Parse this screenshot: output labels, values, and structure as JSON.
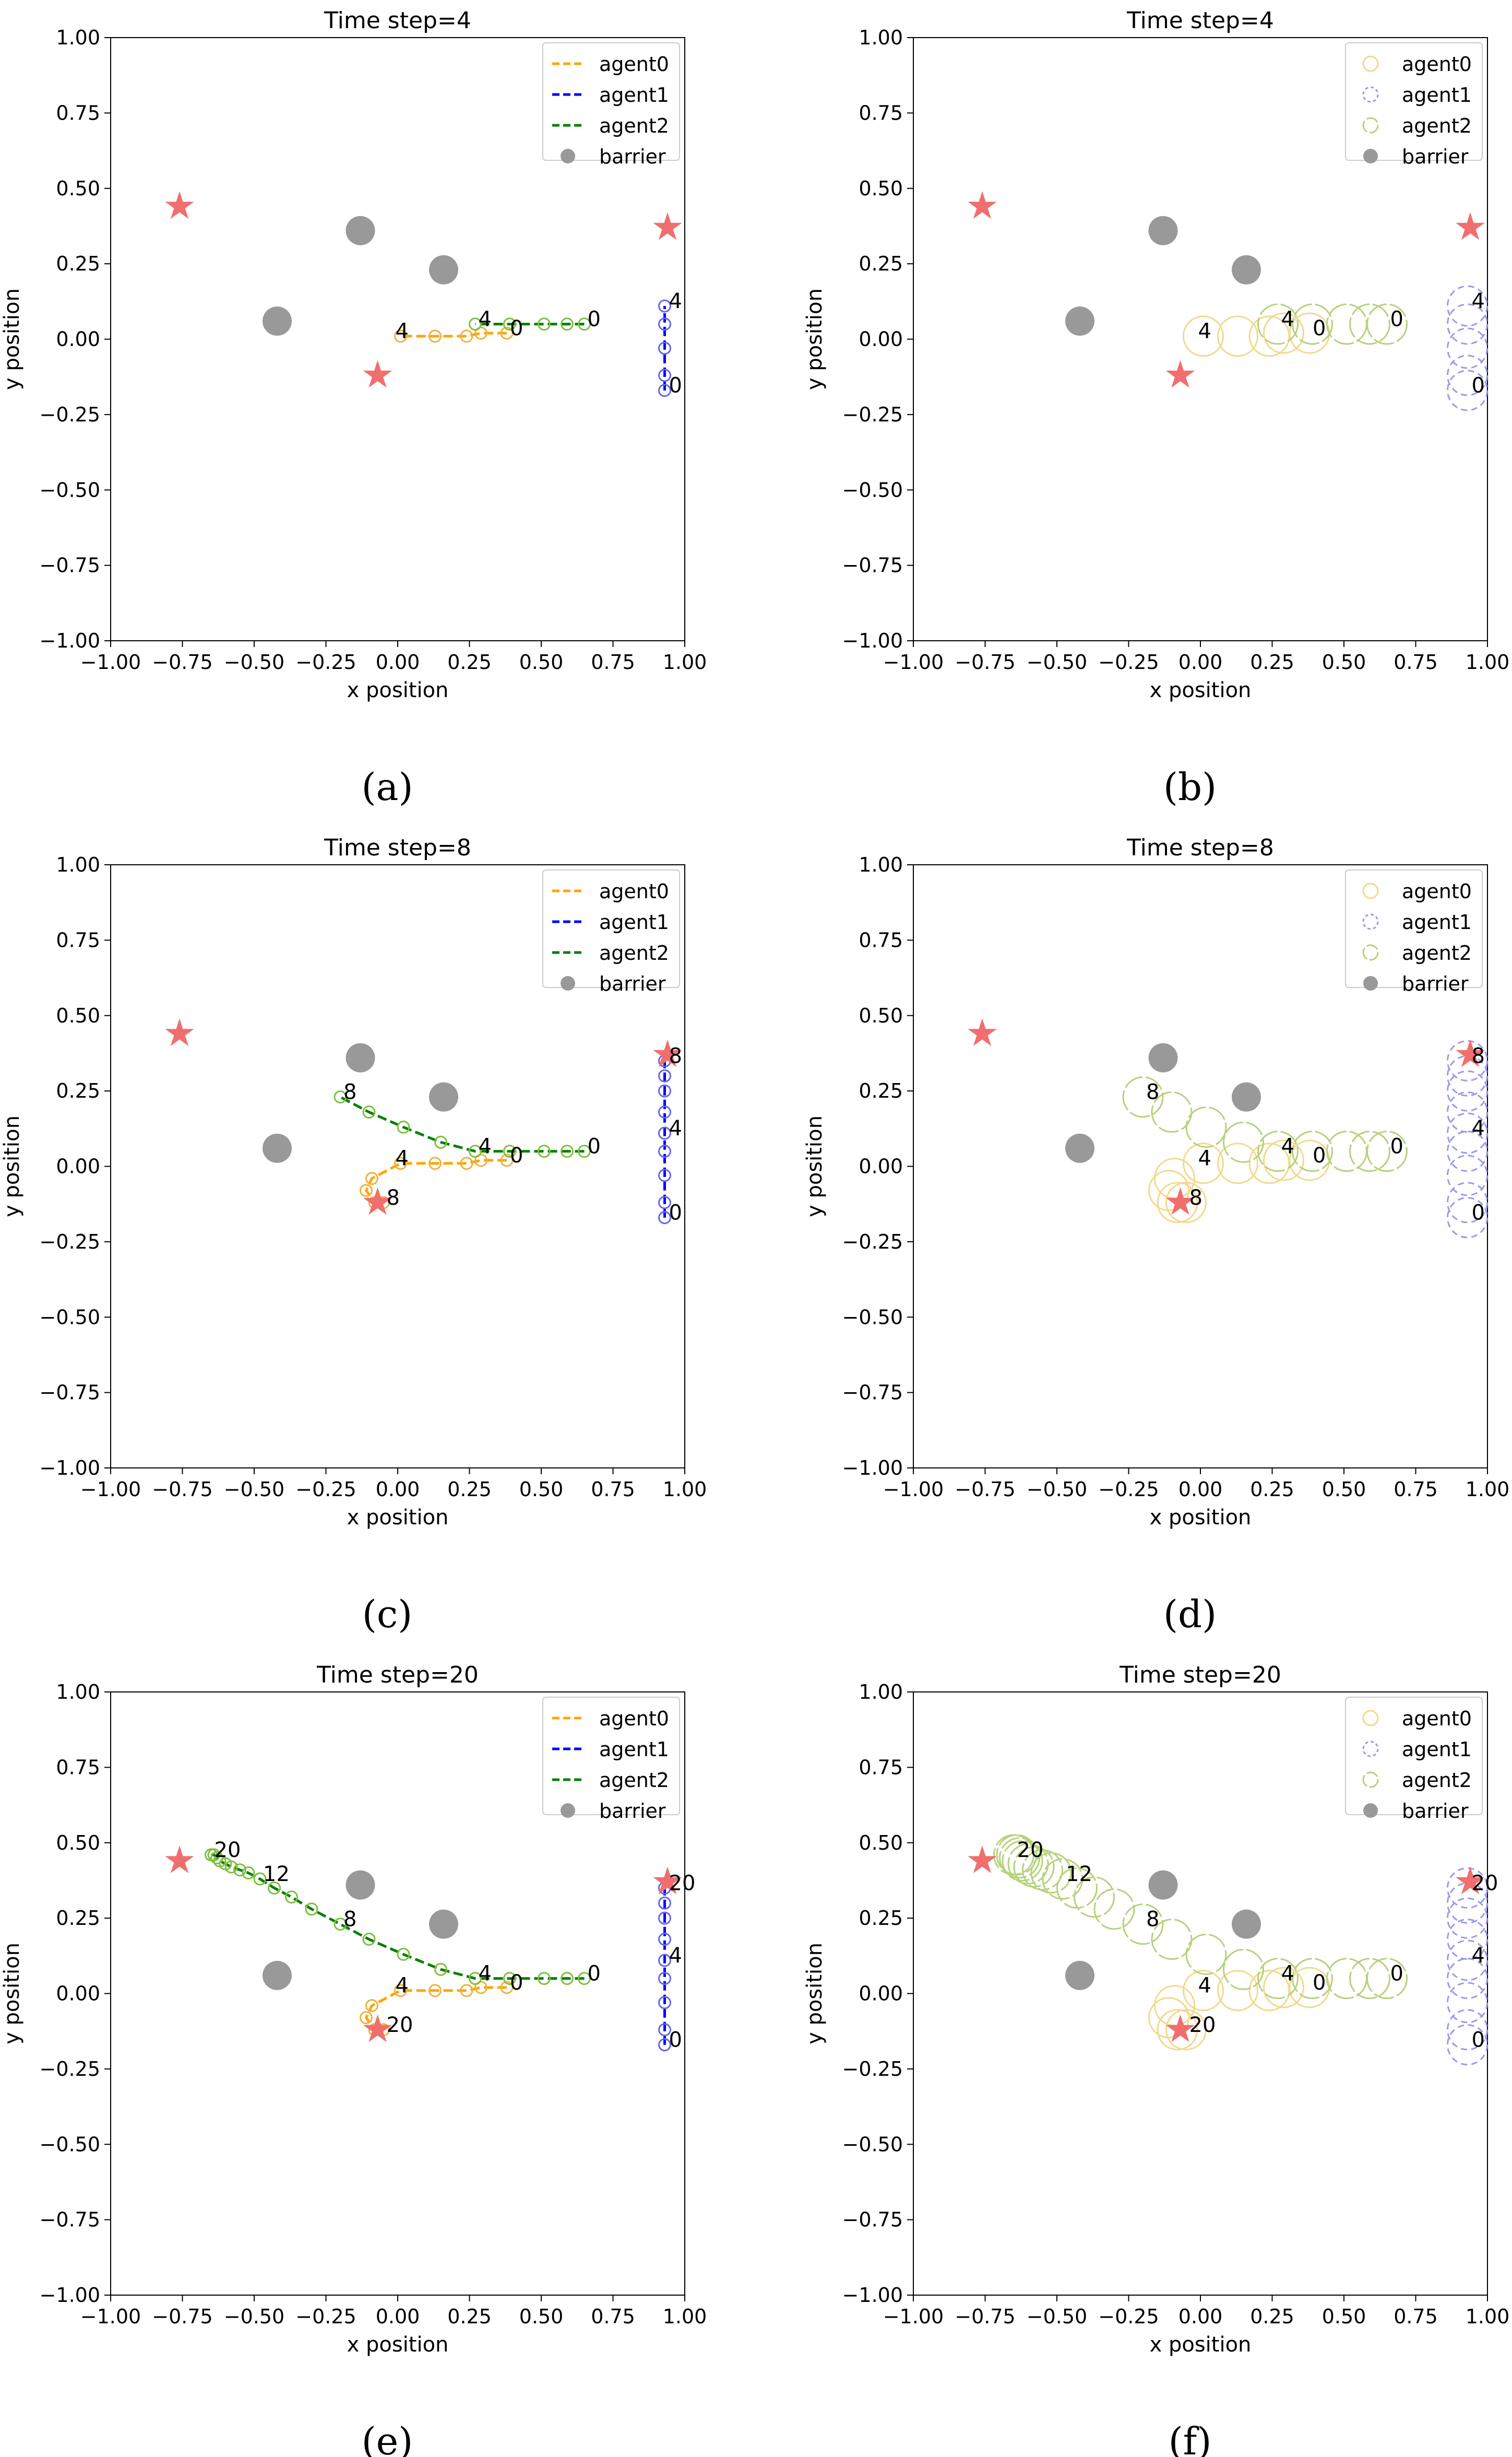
{
  "colors": {
    "agent0": "#FFA500",
    "agent1": "#0000FF",
    "agent2": "#008000",
    "agent0_circle": "#F2D98C",
    "agent1_circle": "#9999EE",
    "agent2_circle": "#B5D27A",
    "barrier": "#999999",
    "goal": "#F06E6E"
  },
  "chart_data": [
    {
      "panel": "(a)",
      "type": "line",
      "style": "trajectory",
      "title": "Time step=4",
      "xlabel": "x position",
      "ylabel": "y position",
      "xlim": [
        -1.0,
        1.0
      ],
      "ylim": [
        -1.0,
        1.0
      ],
      "xticks": [
        "−1.00",
        "−0.75",
        "−0.50",
        "−0.25",
        "0.00",
        "0.25",
        "0.50",
        "0.75",
        "1.00"
      ],
      "yticks": [
        "−1.00",
        "−0.75",
        "−0.50",
        "−0.25",
        "0.00",
        "0.25",
        "0.50",
        "0.75",
        "1.00"
      ],
      "legend": [
        "agent0",
        "agent1",
        "agent2",
        "barrier"
      ],
      "legend_loc": "upper right",
      "barriers": [
        [
          -0.13,
          0.36
        ],
        [
          0.16,
          0.23
        ],
        [
          -0.42,
          0.06
        ]
      ],
      "goals": [
        [
          -0.76,
          0.44
        ],
        [
          0.94,
          0.37
        ],
        [
          -0.07,
          -0.12
        ]
      ],
      "series": [
        {
          "name": "agent0",
          "x": [
            0.38,
            0.29,
            0.24,
            0.13,
            0.01
          ],
          "y": [
            0.02,
            0.02,
            0.01,
            0.01,
            0.01
          ],
          "labels": [
            {
              "idx": 0,
              "text": "0"
            },
            {
              "idx": 4,
              "text": "4"
            }
          ]
        },
        {
          "name": "agent1",
          "x": [
            0.93,
            0.93,
            0.93,
            0.93,
            0.93
          ],
          "y": [
            -0.17,
            -0.12,
            -0.03,
            0.05,
            0.11
          ],
          "labels": [
            {
              "idx": 0,
              "text": "0"
            },
            {
              "idx": 4,
              "text": "4"
            }
          ]
        },
        {
          "name": "agent2",
          "x": [
            0.65,
            0.59,
            0.51,
            0.39,
            0.27
          ],
          "y": [
            0.05,
            0.05,
            0.05,
            0.05,
            0.05
          ],
          "labels": [
            {
              "idx": 0,
              "text": "0"
            },
            {
              "idx": 4,
              "text": "4"
            }
          ]
        }
      ]
    },
    {
      "panel": "(b)",
      "type": "scatter",
      "style": "circles",
      "title": "Time step=4",
      "xlabel": "x position",
      "ylabel": "y position",
      "xlim": [
        -1.0,
        1.0
      ],
      "ylim": [
        -1.0,
        1.0
      ],
      "xticks": [
        "−1.00",
        "−0.75",
        "−0.50",
        "−0.25",
        "0.00",
        "0.25",
        "0.50",
        "0.75",
        "1.00"
      ],
      "yticks": [
        "−1.00",
        "−0.75",
        "−0.50",
        "−0.25",
        "0.00",
        "0.25",
        "0.50",
        "0.75",
        "1.00"
      ],
      "legend": [
        "agent0",
        "agent1",
        "agent2",
        "barrier"
      ],
      "legend_loc": "upper right",
      "barriers": [
        [
          -0.13,
          0.36
        ],
        [
          0.16,
          0.23
        ],
        [
          -0.42,
          0.06
        ]
      ],
      "goals": [
        [
          -0.76,
          0.44
        ],
        [
          0.94,
          0.37
        ],
        [
          -0.07,
          -0.12
        ]
      ],
      "series": [
        {
          "name": "agent0",
          "x": [
            0.38,
            0.29,
            0.24,
            0.13,
            0.01
          ],
          "y": [
            0.02,
            0.02,
            0.01,
            0.01,
            0.01
          ],
          "labels": [
            {
              "idx": 0,
              "text": "0"
            },
            {
              "idx": 4,
              "text": "4"
            }
          ]
        },
        {
          "name": "agent1",
          "x": [
            0.93,
            0.93,
            0.93,
            0.93,
            0.93
          ],
          "y": [
            -0.17,
            -0.12,
            -0.03,
            0.05,
            0.11
          ],
          "labels": [
            {
              "idx": 0,
              "text": "0"
            },
            {
              "idx": 4,
              "text": "4"
            }
          ]
        },
        {
          "name": "agent2",
          "x": [
            0.65,
            0.59,
            0.51,
            0.39,
            0.27
          ],
          "y": [
            0.05,
            0.05,
            0.05,
            0.05,
            0.05
          ],
          "labels": [
            {
              "idx": 0,
              "text": "0"
            },
            {
              "idx": 4,
              "text": "4"
            }
          ]
        }
      ]
    },
    {
      "panel": "(c)",
      "type": "line",
      "style": "trajectory",
      "title": "Time step=8",
      "xlabel": "x position",
      "ylabel": "y position",
      "xlim": [
        -1.0,
        1.0
      ],
      "ylim": [
        -1.0,
        1.0
      ],
      "xticks": [
        "−1.00",
        "−0.75",
        "−0.50",
        "−0.25",
        "0.00",
        "0.25",
        "0.50",
        "0.75",
        "1.00"
      ],
      "yticks": [
        "−1.00",
        "−0.75",
        "−0.50",
        "−0.25",
        "0.00",
        "0.25",
        "0.50",
        "0.75",
        "1.00"
      ],
      "legend": [
        "agent0",
        "agent1",
        "agent2",
        "barrier"
      ],
      "legend_loc": "upper right",
      "barriers": [
        [
          -0.13,
          0.36
        ],
        [
          0.16,
          0.23
        ],
        [
          -0.42,
          0.06
        ]
      ],
      "goals": [
        [
          -0.76,
          0.44
        ],
        [
          0.94,
          0.37
        ],
        [
          -0.07,
          -0.12
        ]
      ],
      "series": [
        {
          "name": "agent0",
          "x": [
            0.38,
            0.29,
            0.24,
            0.13,
            0.01,
            -0.09,
            -0.11,
            -0.08,
            -0.05
          ],
          "y": [
            0.02,
            0.02,
            0.01,
            0.01,
            0.01,
            -0.04,
            -0.08,
            -0.12,
            -0.12
          ],
          "labels": [
            {
              "idx": 0,
              "text": "0"
            },
            {
              "idx": 4,
              "text": "4"
            },
            {
              "idx": 8,
              "text": "8"
            }
          ]
        },
        {
          "name": "agent1",
          "x": [
            0.93,
            0.93,
            0.93,
            0.93,
            0.93,
            0.93,
            0.93,
            0.93,
            0.93
          ],
          "y": [
            -0.17,
            -0.12,
            -0.03,
            0.05,
            0.11,
            0.18,
            0.25,
            0.3,
            0.35
          ],
          "labels": [
            {
              "idx": 0,
              "text": "0"
            },
            {
              "idx": 4,
              "text": "4"
            },
            {
              "idx": 8,
              "text": "8"
            }
          ]
        },
        {
          "name": "agent2",
          "x": [
            0.65,
            0.59,
            0.51,
            0.39,
            0.27,
            0.15,
            0.02,
            -0.1,
            -0.2
          ],
          "y": [
            0.05,
            0.05,
            0.05,
            0.05,
            0.05,
            0.08,
            0.13,
            0.18,
            0.23
          ],
          "labels": [
            {
              "idx": 0,
              "text": "0"
            },
            {
              "idx": 4,
              "text": "4"
            },
            {
              "idx": 8,
              "text": "8"
            }
          ]
        }
      ]
    },
    {
      "panel": "(d)",
      "type": "scatter",
      "style": "circles",
      "title": "Time step=8",
      "xlabel": "x position",
      "ylabel": "y position",
      "xlim": [
        -1.0,
        1.0
      ],
      "ylim": [
        -1.0,
        1.0
      ],
      "xticks": [
        "−1.00",
        "−0.75",
        "−0.50",
        "−0.25",
        "0.00",
        "0.25",
        "0.50",
        "0.75",
        "1.00"
      ],
      "yticks": [
        "−1.00",
        "−0.75",
        "−0.50",
        "−0.25",
        "0.00",
        "0.25",
        "0.50",
        "0.75",
        "1.00"
      ],
      "legend": [
        "agent0",
        "agent1",
        "agent2",
        "barrier"
      ],
      "legend_loc": "upper right",
      "barriers": [
        [
          -0.13,
          0.36
        ],
        [
          0.16,
          0.23
        ],
        [
          -0.42,
          0.06
        ]
      ],
      "goals": [
        [
          -0.76,
          0.44
        ],
        [
          0.94,
          0.37
        ],
        [
          -0.07,
          -0.12
        ]
      ],
      "series": [
        {
          "name": "agent0",
          "x": [
            0.38,
            0.29,
            0.24,
            0.13,
            0.01,
            -0.09,
            -0.11,
            -0.08,
            -0.05
          ],
          "y": [
            0.02,
            0.02,
            0.01,
            0.01,
            0.01,
            -0.04,
            -0.08,
            -0.12,
            -0.12
          ],
          "labels": [
            {
              "idx": 0,
              "text": "0"
            },
            {
              "idx": 4,
              "text": "4"
            },
            {
              "idx": 8,
              "text": "8"
            }
          ]
        },
        {
          "name": "agent1",
          "x": [
            0.93,
            0.93,
            0.93,
            0.93,
            0.93,
            0.93,
            0.93,
            0.93,
            0.93
          ],
          "y": [
            -0.17,
            -0.12,
            -0.03,
            0.05,
            0.11,
            0.18,
            0.25,
            0.3,
            0.35
          ],
          "labels": [
            {
              "idx": 0,
              "text": "0"
            },
            {
              "idx": 4,
              "text": "4"
            },
            {
              "idx": 8,
              "text": "8"
            }
          ]
        },
        {
          "name": "agent2",
          "x": [
            0.65,
            0.59,
            0.51,
            0.39,
            0.27,
            0.15,
            0.02,
            -0.1,
            -0.2
          ],
          "y": [
            0.05,
            0.05,
            0.05,
            0.05,
            0.05,
            0.08,
            0.13,
            0.18,
            0.23
          ],
          "labels": [
            {
              "idx": 0,
              "text": "0"
            },
            {
              "idx": 4,
              "text": "4"
            },
            {
              "idx": 8,
              "text": "8"
            }
          ]
        }
      ]
    },
    {
      "panel": "(e)",
      "type": "line",
      "style": "trajectory",
      "title": "Time step=20",
      "xlabel": "x position",
      "ylabel": "y position",
      "xlim": [
        -1.0,
        1.0
      ],
      "ylim": [
        -1.0,
        1.0
      ],
      "xticks": [
        "−1.00",
        "−0.75",
        "−0.50",
        "−0.25",
        "0.00",
        "0.25",
        "0.50",
        "0.75",
        "1.00"
      ],
      "yticks": [
        "−1.00",
        "−0.75",
        "−0.50",
        "−0.25",
        "0.00",
        "0.25",
        "0.50",
        "0.75",
        "1.00"
      ],
      "legend": [
        "agent0",
        "agent1",
        "agent2",
        "barrier"
      ],
      "legend_loc": "upper right",
      "barriers": [
        [
          -0.13,
          0.36
        ],
        [
          0.16,
          0.23
        ],
        [
          -0.42,
          0.06
        ]
      ],
      "goals": [
        [
          -0.76,
          0.44
        ],
        [
          0.94,
          0.37
        ],
        [
          -0.07,
          -0.12
        ]
      ],
      "series": [
        {
          "name": "agent0",
          "x": [
            0.38,
            0.29,
            0.24,
            0.13,
            0.01,
            -0.09,
            -0.11,
            -0.08,
            -0.05
          ],
          "y": [
            0.02,
            0.02,
            0.01,
            0.01,
            0.01,
            -0.04,
            -0.08,
            -0.12,
            -0.12
          ],
          "labels": [
            {
              "idx": 0,
              "text": "0"
            },
            {
              "idx": 4,
              "text": "4"
            },
            {
              "idx": 8,
              "text": "20"
            }
          ]
        },
        {
          "name": "agent1",
          "x": [
            0.93,
            0.93,
            0.93,
            0.93,
            0.93,
            0.93,
            0.93,
            0.93,
            0.93
          ],
          "y": [
            -0.17,
            -0.12,
            -0.03,
            0.05,
            0.11,
            0.18,
            0.25,
            0.3,
            0.35
          ],
          "labels": [
            {
              "idx": 0,
              "text": "0"
            },
            {
              "idx": 4,
              "text": "4"
            },
            {
              "idx": 8,
              "text": "20"
            }
          ]
        },
        {
          "name": "agent2",
          "x": [
            0.65,
            0.59,
            0.51,
            0.39,
            0.27,
            0.15,
            0.02,
            -0.1,
            -0.2,
            -0.3,
            -0.37,
            -0.43,
            -0.48,
            -0.52,
            -0.55,
            -0.58,
            -0.6,
            -0.62,
            -0.63,
            -0.64,
            -0.65
          ],
          "y": [
            0.05,
            0.05,
            0.05,
            0.05,
            0.05,
            0.08,
            0.13,
            0.18,
            0.23,
            0.28,
            0.32,
            0.35,
            0.38,
            0.4,
            0.41,
            0.42,
            0.43,
            0.44,
            0.45,
            0.46,
            0.46
          ],
          "labels": [
            {
              "idx": 0,
              "text": "0"
            },
            {
              "idx": 4,
              "text": "4"
            },
            {
              "idx": 8,
              "text": "8"
            },
            {
              "idx": 12,
              "text": "12"
            },
            {
              "idx": 20,
              "text": "20"
            }
          ]
        }
      ]
    },
    {
      "panel": "(f)",
      "type": "scatter",
      "style": "circles",
      "title": "Time step=20",
      "xlabel": "x position",
      "ylabel": "y position",
      "xlim": [
        -1.0,
        1.0
      ],
      "ylim": [
        -1.0,
        1.0
      ],
      "xticks": [
        "−1.00",
        "−0.75",
        "−0.50",
        "−0.25",
        "0.00",
        "0.25",
        "0.50",
        "0.75",
        "1.00"
      ],
      "yticks": [
        "−1.00",
        "−0.75",
        "−0.50",
        "−0.25",
        "0.00",
        "0.25",
        "0.50",
        "0.75",
        "1.00"
      ],
      "legend": [
        "agent0",
        "agent1",
        "agent2",
        "barrier"
      ],
      "legend_loc": "upper right",
      "barriers": [
        [
          -0.13,
          0.36
        ],
        [
          0.16,
          0.23
        ],
        [
          -0.42,
          0.06
        ]
      ],
      "goals": [
        [
          -0.76,
          0.44
        ],
        [
          0.94,
          0.37
        ],
        [
          -0.07,
          -0.12
        ]
      ],
      "series": [
        {
          "name": "agent0",
          "x": [
            0.38,
            0.29,
            0.24,
            0.13,
            0.01,
            -0.09,
            -0.11,
            -0.08,
            -0.05
          ],
          "y": [
            0.02,
            0.02,
            0.01,
            0.01,
            0.01,
            -0.04,
            -0.08,
            -0.12,
            -0.12
          ],
          "labels": [
            {
              "idx": 0,
              "text": "0"
            },
            {
              "idx": 4,
              "text": "4"
            },
            {
              "idx": 8,
              "text": "20"
            }
          ]
        },
        {
          "name": "agent1",
          "x": [
            0.93,
            0.93,
            0.93,
            0.93,
            0.93,
            0.93,
            0.93,
            0.93,
            0.93
          ],
          "y": [
            -0.17,
            -0.12,
            -0.03,
            0.05,
            0.11,
            0.18,
            0.25,
            0.3,
            0.35
          ],
          "labels": [
            {
              "idx": 0,
              "text": "0"
            },
            {
              "idx": 4,
              "text": "4"
            },
            {
              "idx": 8,
              "text": "20"
            }
          ]
        },
        {
          "name": "agent2",
          "x": [
            0.65,
            0.59,
            0.51,
            0.39,
            0.27,
            0.15,
            0.02,
            -0.1,
            -0.2,
            -0.3,
            -0.37,
            -0.43,
            -0.48,
            -0.52,
            -0.55,
            -0.58,
            -0.6,
            -0.62,
            -0.63,
            -0.64,
            -0.65
          ],
          "y": [
            0.05,
            0.05,
            0.05,
            0.05,
            0.05,
            0.08,
            0.13,
            0.18,
            0.23,
            0.28,
            0.32,
            0.35,
            0.38,
            0.4,
            0.41,
            0.42,
            0.43,
            0.44,
            0.45,
            0.46,
            0.46
          ],
          "labels": [
            {
              "idx": 0,
              "text": "0"
            },
            {
              "idx": 4,
              "text": "4"
            },
            {
              "idx": 8,
              "text": "8"
            },
            {
              "idx": 12,
              "text": "12"
            },
            {
              "idx": 20,
              "text": "20"
            }
          ]
        }
      ]
    }
  ]
}
